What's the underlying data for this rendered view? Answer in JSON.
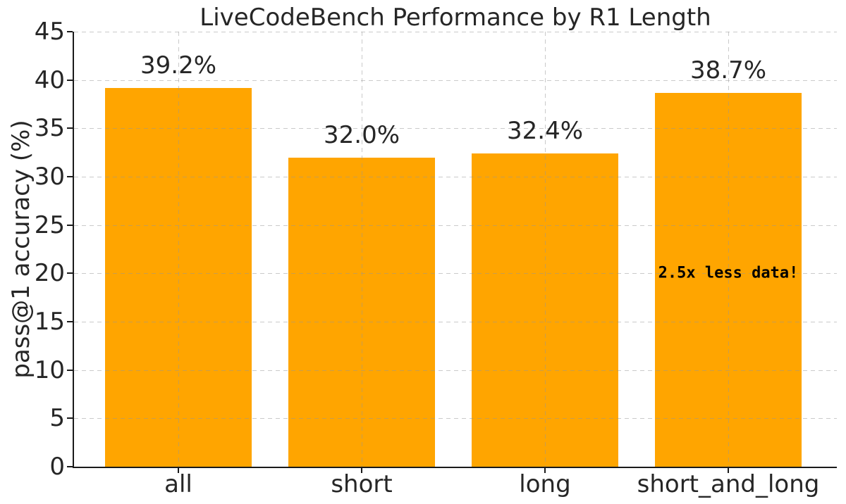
{
  "chart_data": {
    "type": "bar",
    "title": "LiveCodeBench Performance by R1 Length",
    "xlabel": "",
    "ylabel": "pass@1 accuracy (%)",
    "categories": [
      "all",
      "short",
      "long",
      "short_and_long"
    ],
    "values": [
      39.2,
      32.0,
      32.4,
      38.7
    ],
    "bar_labels": [
      "39.2%",
      "32.0%",
      "32.4%",
      "38.7%"
    ],
    "ylim": [
      0,
      45
    ],
    "yticks": [
      0,
      5,
      10,
      15,
      20,
      25,
      30,
      35,
      40,
      45
    ],
    "ytick_labels": [
      "0",
      "5",
      "10",
      "15",
      "20",
      "25",
      "30",
      "35",
      "40",
      "45"
    ],
    "grid": "dashed, horizontal at every y tick and vertical at every category center, drawn faintly over bars",
    "legend": false,
    "bar_color": "#FFA500",
    "annotation": {
      "text": "2.5x less data!",
      "category_index": 3,
      "y_value": 20,
      "color": "#000000"
    },
    "colors": {
      "background": "#ffffff",
      "text": "#262626",
      "spine": "#1a1a1a",
      "grid": "#c9c9c9"
    }
  }
}
